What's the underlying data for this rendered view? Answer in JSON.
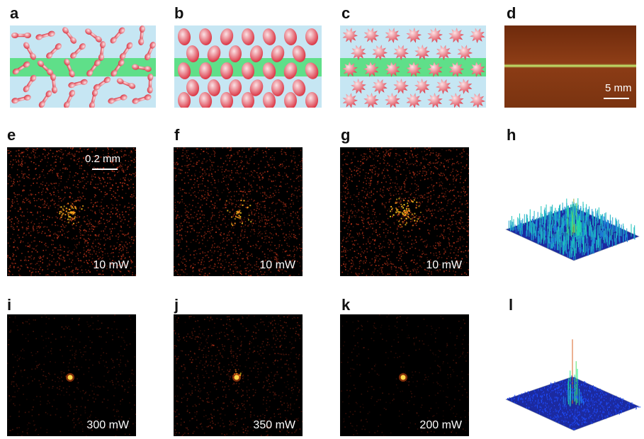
{
  "labels": {
    "a": "a",
    "b": "b",
    "c": "c",
    "d": "d",
    "e": "e",
    "f": "f",
    "g": "g",
    "h": "h",
    "i": "i",
    "j": "j",
    "k": "k",
    "l": "l"
  },
  "panel_d": {
    "scale_text": "5 mm"
  },
  "panel_e": {
    "scale_text": "0.2 mm",
    "power": "10 mW"
  },
  "panel_f": {
    "power": "10 mW"
  },
  "panel_g": {
    "power": "10 mW"
  },
  "panel_i": {
    "power": "300 mW"
  },
  "panel_j": {
    "power": "350 mW"
  },
  "panel_k": {
    "power": "200 mW"
  },
  "colors": {
    "schematic_bg": "#c6e6f3",
    "beam": "#28dc50",
    "particle": "#d92b3a",
    "sample_bg": "#8a3a14",
    "speckle_hot": "#ffb020",
    "surface_low": "#1a2a9a",
    "surface_high": "#d01010"
  }
}
